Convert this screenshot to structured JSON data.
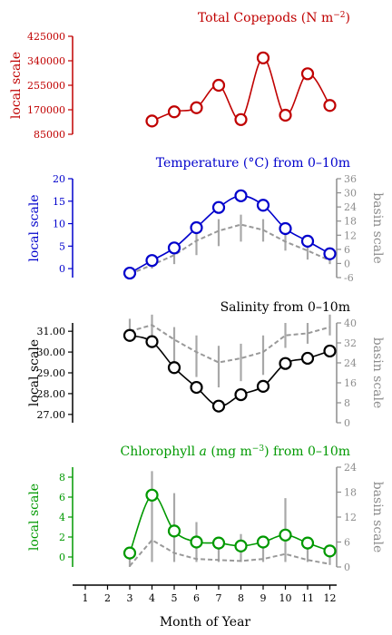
{
  "chart_data": [
    {
      "type": "line",
      "title_main": "Total Copepods (N m",
      "title_sup": "−2",
      "title_end": ")",
      "ylabel_left": "local scale",
      "ylabel_right": "",
      "color": "#c00000",
      "ylim_left": [
        85000,
        425000
      ],
      "left_ticks": [
        "425000",
        "340000",
        "255000",
        "170000",
        "85000"
      ],
      "left_tick_values": [
        425000,
        340000,
        255000,
        170000,
        85000
      ],
      "right_ticks": [],
      "right_tick_values": [],
      "x": [
        4,
        5,
        6,
        7,
        8,
        9,
        10,
        11,
        12
      ],
      "local": [
        131000,
        163000,
        177000,
        255000,
        136000,
        350000,
        151000,
        295000,
        185000
      ],
      "basin": [],
      "basin_spread": []
    },
    {
      "type": "line",
      "title_main": "Temperature (°C) from 0–10m",
      "title_sup": "",
      "title_end": "",
      "ylabel_left": "local scale",
      "ylabel_right": "basin scale",
      "color": "#0000cc",
      "ylim_left": [
        -2,
        20
      ],
      "left_ticks": [
        "20",
        "15",
        "10",
        "5",
        "0"
      ],
      "left_tick_values": [
        20,
        15,
        10,
        5,
        0
      ],
      "right_ticks": [
        "36",
        "30",
        "24",
        "18",
        "12",
        "6",
        "0",
        "-6"
      ],
      "right_tick_values": [
        36,
        30,
        24,
        18,
        12,
        6,
        0,
        -6
      ],
      "x": [
        3,
        4,
        5,
        6,
        7,
        8,
        9,
        10,
        11,
        12
      ],
      "local": [
        -1.0,
        1.8,
        4.6,
        9.1,
        13.6,
        16.2,
        14.1,
        8.9,
        6.1,
        3.3
      ],
      "basin": [
        -1.2,
        0.8,
        3.0,
        6.2,
        8.4,
        9.8,
        8.6,
        6.0,
        4.0,
        1.8
      ],
      "basin_spread": [
        [
          -1.8,
          0.0
        ],
        [
          0.0,
          2.0
        ],
        [
          1.0,
          5.0
        ],
        [
          3.0,
          9.0
        ],
        [
          5.0,
          11.0
        ],
        [
          6.0,
          12.0
        ],
        [
          6.0,
          11.0
        ],
        [
          4.0,
          8.0
        ],
        [
          2.0,
          6.0
        ],
        [
          1.0,
          3.0
        ]
      ]
    },
    {
      "type": "line",
      "title_main": "Salinity from 0–10m",
      "title_sup": "",
      "title_end": "",
      "ylabel_left": "local scale",
      "ylabel_right": "basin scale",
      "color": "#000000",
      "ylim_left": [
        26.6,
        31.4
      ],
      "left_ticks": [
        "31.00",
        "30.00",
        "29.00",
        "28.00",
        "27.00"
      ],
      "left_tick_values": [
        31.0,
        30.0,
        29.0,
        28.0,
        27.0
      ],
      "right_ticks": [
        "40",
        "32",
        "24",
        "16",
        "8",
        "0"
      ],
      "right_tick_values": [
        40,
        32,
        24,
        16,
        8,
        0
      ],
      "x": [
        3,
        4,
        5,
        6,
        7,
        8,
        9,
        10,
        11,
        12
      ],
      "local": [
        30.8,
        30.5,
        29.25,
        28.3,
        27.4,
        27.95,
        28.35,
        29.45,
        29.7,
        30.05
      ],
      "basin": [
        31.0,
        31.3,
        30.6,
        30.0,
        29.5,
        29.7,
        30.0,
        30.8,
        30.9,
        31.2
      ],
      "basin_spread": [
        [
          30.5,
          31.6
        ],
        [
          30.8,
          31.8
        ],
        [
          29.5,
          31.2
        ],
        [
          28.8,
          30.8
        ],
        [
          28.3,
          30.3
        ],
        [
          28.6,
          30.4
        ],
        [
          28.9,
          30.8
        ],
        [
          30.2,
          31.4
        ],
        [
          30.4,
          31.4
        ],
        [
          30.8,
          31.8
        ]
      ]
    },
    {
      "type": "line",
      "title_main": "Chlorophyll ",
      "title_italic": "a",
      "title_mid": " (mg m",
      "title_sup": "−3",
      "title_end": ") from 0–10m",
      "ylabel_left": "local scale",
      "ylabel_right": "basin scale",
      "color": "#009900",
      "ylim_left": [
        -1,
        9
      ],
      "left_ticks": [
        "8",
        "6",
        "4",
        "2",
        "0"
      ],
      "left_tick_values": [
        8,
        6,
        4,
        2,
        0
      ],
      "right_ticks": [
        "24",
        "18",
        "12",
        "6",
        "0"
      ],
      "right_tick_values": [
        24,
        18,
        12,
        6,
        0
      ],
      "x": [
        3,
        4,
        5,
        6,
        7,
        8,
        9,
        10,
        11,
        12
      ],
      "local": [
        0.4,
        6.2,
        2.6,
        1.5,
        1.4,
        1.1,
        1.5,
        2.2,
        1.4,
        0.6
      ],
      "basin": [
        -0.9,
        1.7,
        0.4,
        -0.2,
        -0.3,
        -0.4,
        -0.2,
        0.3,
        -0.3,
        -0.7
      ],
      "basin_spread": [
        [
          -1.0,
          0.2
        ],
        [
          -0.5,
          8.6
        ],
        [
          -0.5,
          6.4
        ],
        [
          -0.5,
          3.5
        ],
        [
          -0.5,
          1.6
        ],
        [
          -0.5,
          2.3
        ],
        [
          -0.5,
          1.6
        ],
        [
          -0.5,
          5.9
        ],
        [
          -0.5,
          1.8
        ],
        [
          -0.8,
          0.6
        ]
      ]
    }
  ],
  "x_axis": {
    "label": "Month of Year",
    "ticks": [
      "1",
      "2",
      "3",
      "4",
      "5",
      "6",
      "7",
      "8",
      "9",
      "10",
      "11",
      "12"
    ],
    "values": [
      1,
      2,
      3,
      4,
      5,
      6,
      7,
      8,
      9,
      10,
      11,
      12
    ]
  }
}
